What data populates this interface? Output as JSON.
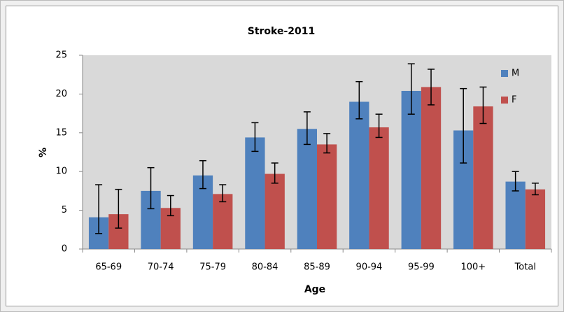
{
  "chart_data": {
    "type": "bar",
    "title": "Stroke-2011",
    "x_label": "Age",
    "y_label": "%",
    "categories": [
      "65-69",
      "70-74",
      "75-79",
      "80-84",
      "85-89",
      "90-94",
      "95-99",
      "100+",
      "Total"
    ],
    "series": [
      {
        "name": "M",
        "color": "#4f81bd",
        "values": [
          4.1,
          7.5,
          9.5,
          14.4,
          15.5,
          19.0,
          20.4,
          15.3,
          8.7
        ],
        "lower": [
          2.0,
          5.2,
          7.8,
          12.6,
          13.5,
          16.8,
          17.4,
          11.1,
          7.5
        ],
        "upper": [
          8.3,
          10.5,
          11.4,
          16.3,
          17.7,
          21.6,
          23.9,
          20.7,
          10.0
        ]
      },
      {
        "name": "F",
        "color": "#c0504d",
        "values": [
          4.5,
          5.3,
          7.1,
          9.7,
          13.5,
          15.7,
          20.9,
          18.4,
          7.7
        ],
        "lower": [
          2.7,
          4.3,
          6.1,
          8.5,
          12.4,
          14.4,
          18.6,
          16.2,
          7.0
        ],
        "upper": [
          7.7,
          6.9,
          8.3,
          11.1,
          14.9,
          17.4,
          23.2,
          20.9,
          8.5
        ]
      }
    ],
    "ylim": [
      0,
      25
    ],
    "yticks": [
      0,
      5,
      10,
      15,
      20,
      25
    ],
    "grid": false,
    "legend": "top-right"
  }
}
